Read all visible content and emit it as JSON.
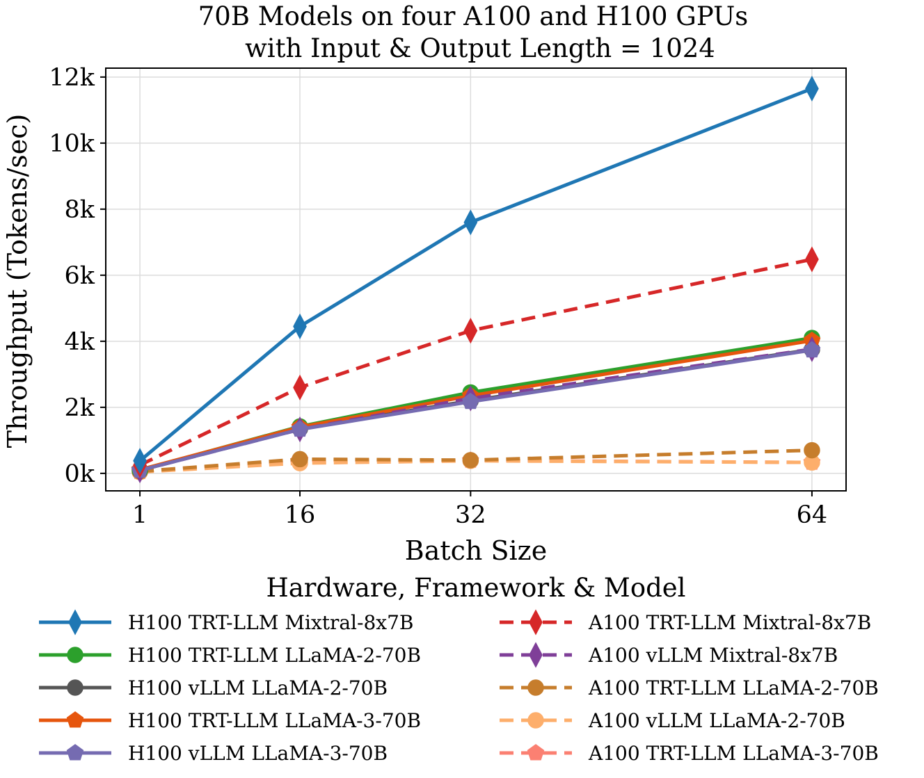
{
  "chart_data": {
    "type": "line",
    "title_line1": "70B Models on four A100 and H100 GPUs",
    "title_line2": "with Input & Output Length = 1024",
    "xlabel": "Batch Size",
    "ylabel": "Throughput (Tokens/sec)",
    "x": [
      1,
      16,
      32,
      64
    ],
    "x_ticks": [
      "1",
      "16",
      "32",
      "64"
    ],
    "y_ticks": [
      {
        "value": 0,
        "label": "0k"
      },
      {
        "value": 2000,
        "label": "2k"
      },
      {
        "value": 4000,
        "label": "4k"
      },
      {
        "value": 6000,
        "label": "6k"
      },
      {
        "value": 8000,
        "label": "8k"
      },
      {
        "value": 10000,
        "label": "10k"
      },
      {
        "value": 12000,
        "label": "12k"
      }
    ],
    "xlim": [
      -2.2,
      67.2
    ],
    "ylim": [
      -530,
      12270
    ],
    "grid": true,
    "legend_title": "Hardware, Framework & Model",
    "legend_position": "below",
    "series": [
      {
        "name": "H100 TRT-LLM Mixtral-8x7B",
        "color": "#1f77b4",
        "marker": "diamond",
        "dashed": false,
        "values": [
          380,
          4450,
          7600,
          11650
        ]
      },
      {
        "name": "H100 TRT-LLM LLaMA-2-70B",
        "color": "#2ca02c",
        "marker": "circle",
        "dashed": false,
        "values": [
          100,
          1420,
          2450,
          4100
        ]
      },
      {
        "name": "H100 vLLM LLaMA-2-70B",
        "color": "#555555",
        "marker": "circle",
        "dashed": false,
        "values": [
          90,
          1350,
          2200,
          3750
        ]
      },
      {
        "name": "H100 TRT-LLM LLaMA-3-70B",
        "color": "#e6550d",
        "marker": "pentagon",
        "dashed": false,
        "values": [
          110,
          1400,
          2350,
          4020
        ]
      },
      {
        "name": "H100 vLLM LLaMA-3-70B",
        "color": "#756bb1",
        "marker": "pentagon",
        "dashed": false,
        "values": [
          90,
          1330,
          2170,
          3730
        ]
      },
      {
        "name": "A100 TRT-LLM Mixtral-8x7B",
        "color": "#d62728",
        "marker": "diamond",
        "dashed": true,
        "values": [
          250,
          2600,
          4320,
          6480
        ]
      },
      {
        "name": "A100 vLLM Mixtral-8x7B",
        "color": "#7f3f98",
        "marker": "diamond",
        "dashed": true,
        "values": [
          90,
          1330,
          2270,
          3760
        ]
      },
      {
        "name": "A100 TRT-LLM LLaMA-2-70B",
        "color": "#c67d2c",
        "marker": "circle",
        "dashed": true,
        "values": [
          60,
          430,
          400,
          700
        ]
      },
      {
        "name": "A100 vLLM LLaMA-2-70B",
        "color": "#fdae6b",
        "marker": "circle",
        "dashed": true,
        "values": [
          40,
          310,
          380,
          330
        ]
      },
      {
        "name": "A100 TRT-LLM LLaMA-3-70B",
        "color": "#fb8072",
        "marker": "pentagon",
        "dashed": true,
        "values": [
          50,
          400,
          390,
          330
        ]
      }
    ]
  }
}
